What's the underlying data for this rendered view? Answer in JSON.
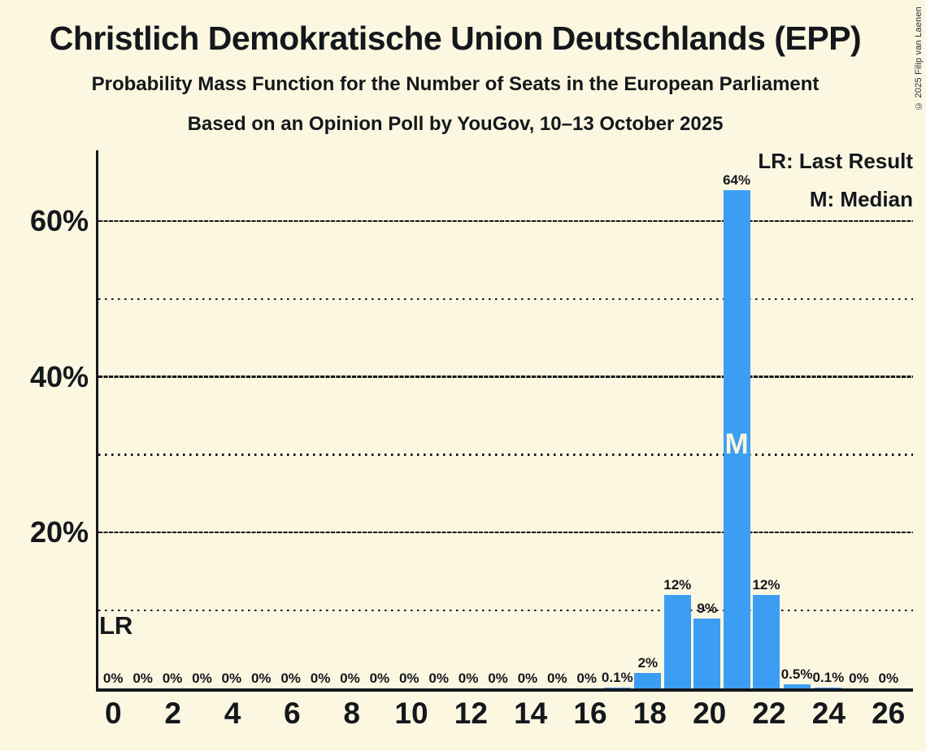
{
  "page": {
    "background": "#FCF7E1",
    "text_color": "#14181C"
  },
  "header": {
    "title": "Christlich Demokratische Union Deutschlands (EPP)",
    "subtitle": "Probability Mass Function for the Number of Seats in the European Parliament",
    "poll_line": "Based on an Opinion Poll by YouGov, 10–13 October 2025"
  },
  "copyright": "© 2025 Filip van Laenen",
  "chart_data": {
    "type": "bar",
    "title": "Christlich Demokratische Union Deutschlands (EPP)",
    "x": [
      0,
      1,
      2,
      3,
      4,
      5,
      6,
      7,
      8,
      9,
      10,
      11,
      12,
      13,
      14,
      15,
      16,
      17,
      18,
      19,
      20,
      21,
      22,
      23,
      24,
      25,
      26
    ],
    "values": [
      0,
      0,
      0,
      0,
      0,
      0,
      0,
      0,
      0,
      0,
      0,
      0,
      0,
      0,
      0,
      0,
      0,
      0.1,
      2,
      12,
      9,
      64,
      12,
      0.5,
      0.1,
      0,
      0
    ],
    "bar_labels": [
      "0%",
      "0%",
      "0%",
      "0%",
      "0%",
      "0%",
      "0%",
      "0%",
      "0%",
      "0%",
      "0%",
      "0%",
      "0%",
      "0%",
      "0%",
      "0%",
      "0%",
      "0.1%",
      "2%",
      "12%",
      "9%",
      "64%",
      "12%",
      "0.5%",
      "0.1%",
      "0%",
      "0%"
    ],
    "xticks": [
      0,
      2,
      4,
      6,
      8,
      10,
      12,
      14,
      16,
      18,
      20,
      22,
      24,
      26
    ],
    "yticks": [
      {
        "value": 20,
        "label": "20%"
      },
      {
        "value": 40,
        "label": "40%"
      },
      {
        "value": 60,
        "label": "60%"
      }
    ],
    "gridlines": {
      "dashed": [
        20,
        40,
        60
      ],
      "dotted": [
        10,
        30,
        50
      ]
    },
    "ylim": [
      0,
      69
    ],
    "median_seat": 21,
    "median_label": "M",
    "last_result_label": "LR",
    "legend": {
      "lr": "LR: Last Result",
      "m": "M: Median"
    },
    "bar_color": "#3B9EF4",
    "grid_color": "#15181B",
    "background": "#FCF7E1"
  }
}
